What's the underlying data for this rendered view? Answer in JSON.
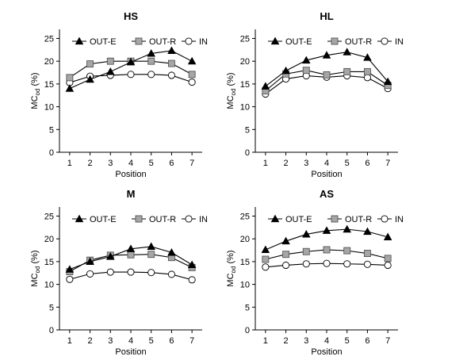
{
  "figure": {
    "series_names": [
      "OUT-E",
      "OUT-R",
      "IN"
    ],
    "series_colors": {
      "OUT-E": "#000000",
      "OUT-R": "#a6a6a6",
      "IN": "#ffffff"
    },
    "markers": {
      "OUT-E": "filled-triangle",
      "OUT-R": "grey-square",
      "IN": "open-circle"
    }
  },
  "chart_data": [
    {
      "type": "line",
      "title": "HS",
      "xlabel": "Position",
      "ylabel_main": "MC",
      "ylabel_sub": "od",
      "ylabel_tail": " (%)",
      "x": [
        1,
        2,
        3,
        4,
        5,
        6,
        7
      ],
      "xlim": [
        0.5,
        7.5
      ],
      "ylim": [
        0,
        27
      ],
      "yticks": [
        0,
        5,
        10,
        15,
        20,
        25
      ],
      "grid": false,
      "legend": "top",
      "series": [
        {
          "name": "OUT-E",
          "values": [
            14.0,
            16.0,
            17.7,
            19.8,
            21.7,
            22.3,
            20.0
          ]
        },
        {
          "name": "OUT-R",
          "values": [
            16.4,
            19.4,
            20.0,
            20.0,
            20.0,
            19.5,
            17.1
          ]
        },
        {
          "name": "IN",
          "values": [
            15.3,
            16.7,
            16.9,
            17.1,
            17.1,
            16.9,
            15.4
          ]
        }
      ]
    },
    {
      "type": "line",
      "title": "HL",
      "xlabel": "Position",
      "ylabel_main": "MC",
      "ylabel_sub": "od",
      "ylabel_tail": " (%)",
      "x": [
        1,
        2,
        3,
        4,
        5,
        6,
        7
      ],
      "xlim": [
        0.5,
        7.5
      ],
      "ylim": [
        0,
        27
      ],
      "yticks": [
        0,
        5,
        10,
        15,
        20,
        25
      ],
      "grid": false,
      "legend": "top",
      "series": [
        {
          "name": "OUT-E",
          "values": [
            14.5,
            17.9,
            20.2,
            21.3,
            22.0,
            20.8,
            15.5
          ]
        },
        {
          "name": "OUT-R",
          "values": [
            13.5,
            17.2,
            18.0,
            17.0,
            17.7,
            17.7,
            14.7
          ]
        },
        {
          "name": "IN",
          "values": [
            12.8,
            16.1,
            16.8,
            16.5,
            16.8,
            16.4,
            14.0
          ]
        }
      ]
    },
    {
      "type": "line",
      "title": "M",
      "xlabel": "Position",
      "ylabel_main": "MC",
      "ylabel_sub": "od",
      "ylabel_tail": " (%)",
      "x": [
        1,
        2,
        3,
        4,
        5,
        6,
        7
      ],
      "xlim": [
        0.5,
        7.5
      ],
      "ylim": [
        0,
        27
      ],
      "yticks": [
        0,
        5,
        10,
        15,
        20,
        25
      ],
      "grid": false,
      "legend": "top",
      "series": [
        {
          "name": "OUT-E",
          "values": [
            13.3,
            15.0,
            16.1,
            17.8,
            18.3,
            17.0,
            14.3
          ]
        },
        {
          "name": "OUT-R",
          "values": [
            12.8,
            15.3,
            16.4,
            16.5,
            16.6,
            15.9,
            13.7
          ]
        },
        {
          "name": "IN",
          "values": [
            11.1,
            12.3,
            12.7,
            12.7,
            12.6,
            12.2,
            11.0
          ]
        }
      ]
    },
    {
      "type": "line",
      "title": "AS",
      "xlabel": "Position",
      "ylabel_main": "MC",
      "ylabel_sub": "od",
      "ylabel_tail": " (%)",
      "x": [
        1,
        2,
        3,
        4,
        5,
        6,
        7
      ],
      "xlim": [
        0.5,
        7.5
      ],
      "ylim": [
        0,
        27
      ],
      "yticks": [
        0,
        5,
        10,
        15,
        20,
        25
      ],
      "grid": false,
      "legend": "top",
      "series": [
        {
          "name": "OUT-E",
          "values": [
            17.6,
            19.5,
            21.0,
            21.8,
            22.1,
            21.6,
            20.4
          ]
        },
        {
          "name": "OUT-R",
          "values": [
            15.5,
            16.6,
            17.2,
            17.6,
            17.4,
            16.8,
            15.7
          ]
        },
        {
          "name": "IN",
          "values": [
            13.8,
            14.2,
            14.5,
            14.6,
            14.5,
            14.4,
            14.2
          ]
        }
      ]
    }
  ]
}
